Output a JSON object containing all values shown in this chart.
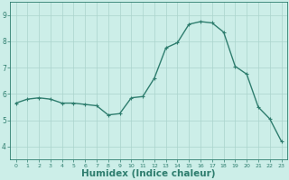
{
  "x": [
    0,
    1,
    2,
    3,
    4,
    5,
    6,
    7,
    8,
    9,
    10,
    11,
    12,
    13,
    14,
    15,
    16,
    17,
    18,
    19,
    20,
    21,
    22,
    23
  ],
  "y": [
    5.65,
    5.8,
    5.85,
    5.8,
    5.65,
    5.65,
    5.6,
    5.55,
    5.2,
    5.25,
    5.85,
    5.9,
    6.6,
    7.75,
    7.95,
    8.65,
    8.75,
    8.7,
    8.35,
    7.05,
    6.75,
    5.5,
    5.05,
    4.2
  ],
  "line_color": "#2e7d6e",
  "marker": "+",
  "marker_size": 3.5,
  "marker_color": "#2e7d6e",
  "bg_color": "#cceee8",
  "grid_color": "#aad4cc",
  "axis_color": "#2e7d6e",
  "xlabel": "Humidex (Indice chaleur)",
  "xlabel_fontsize": 7.5,
  "xlim": [
    -0.5,
    23.5
  ],
  "ylim": [
    3.5,
    9.5
  ],
  "yticks": [
    4,
    5,
    6,
    7,
    8,
    9
  ],
  "xticks": [
    0,
    1,
    2,
    3,
    4,
    5,
    6,
    7,
    8,
    9,
    10,
    11,
    12,
    13,
    14,
    15,
    16,
    17,
    18,
    19,
    20,
    21,
    22,
    23
  ],
  "line_width": 1.0
}
